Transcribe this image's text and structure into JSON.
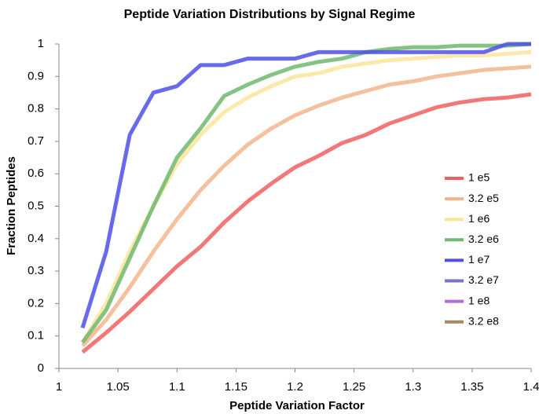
{
  "chart_data": {
    "type": "line",
    "title": "Peptide Variation Distributions by Signal Regime",
    "x_label": "Peptide Variation Factor",
    "y_label": "Fraction Peptides",
    "x": [
      1.02,
      1.04,
      1.06,
      1.08,
      1.1,
      1.12,
      1.14,
      1.16,
      1.18,
      1.2,
      1.22,
      1.24,
      1.26,
      1.28,
      1.3,
      1.32,
      1.34,
      1.36,
      1.38,
      1.4
    ],
    "series": [
      {
        "name": "1 e5",
        "color": "#f06060",
        "values": [
          0.05,
          0.11,
          0.175,
          0.245,
          0.315,
          0.375,
          0.45,
          0.515,
          0.57,
          0.62,
          0.655,
          0.695,
          0.72,
          0.755,
          0.78,
          0.805,
          0.82,
          0.83,
          0.835,
          0.845
        ]
      },
      {
        "name": "3.2 e5",
        "color": "#f2b58c",
        "values": [
          0.07,
          0.15,
          0.25,
          0.36,
          0.46,
          0.55,
          0.625,
          0.69,
          0.74,
          0.78,
          0.81,
          0.835,
          0.855,
          0.875,
          0.885,
          0.9,
          0.91,
          0.92,
          0.925,
          0.93
        ]
      },
      {
        "name": "1 e6",
        "color": "#fbe59a",
        "values": [
          0.08,
          0.2,
          0.36,
          0.5,
          0.63,
          0.72,
          0.79,
          0.835,
          0.87,
          0.9,
          0.91,
          0.93,
          0.94,
          0.95,
          0.955,
          0.96,
          0.965,
          0.965,
          0.97,
          0.975
        ]
      },
      {
        "name": "3.2 e6",
        "color": "#6fb86f",
        "values": [
          0.08,
          0.18,
          0.34,
          0.5,
          0.65,
          0.74,
          0.84,
          0.875,
          0.905,
          0.93,
          0.945,
          0.955,
          0.975,
          0.985,
          0.99,
          0.99,
          0.995,
          0.995,
          0.995,
          1.0
        ]
      },
      {
        "name": "1 e7",
        "color": "#4f4fe8",
        "values": [
          0.125,
          0.36,
          0.72,
          0.85,
          0.87,
          0.935,
          0.935,
          0.955,
          0.955,
          0.955,
          0.975,
          0.975,
          0.975,
          0.975,
          0.975,
          0.975,
          0.975,
          0.975,
          1.0,
          1.0
        ]
      },
      {
        "name": "3.2 e7",
        "color": "#7676c8",
        "values": [
          null,
          null,
          null,
          null,
          null,
          null,
          null,
          null,
          null,
          null,
          null,
          null,
          null,
          null,
          null,
          null,
          null,
          null,
          null,
          null
        ]
      },
      {
        "name": "1 e8",
        "color": "#b56ae0",
        "values": [
          null,
          null,
          null,
          null,
          null,
          null,
          null,
          null,
          null,
          null,
          null,
          null,
          null,
          null,
          null,
          null,
          null,
          null,
          null,
          null
        ]
      },
      {
        "name": "3.2 e8",
        "color": "#a88762",
        "values": [
          null,
          null,
          null,
          null,
          null,
          null,
          null,
          null,
          null,
          null,
          null,
          null,
          null,
          null,
          null,
          null,
          null,
          null,
          null,
          null
        ]
      }
    ],
    "xlim": [
      1,
      1.4
    ],
    "xticks": [
      1,
      1.05,
      1.1,
      1.15,
      1.2,
      1.25,
      1.3,
      1.35,
      1.4
    ],
    "ylim": [
      0,
      1
    ],
    "yticks": [
      0,
      0.1,
      0.2,
      0.3,
      0.4,
      0.5,
      0.6,
      0.7,
      0.8,
      0.9,
      1
    ],
    "grid": false,
    "legend": "right"
  }
}
